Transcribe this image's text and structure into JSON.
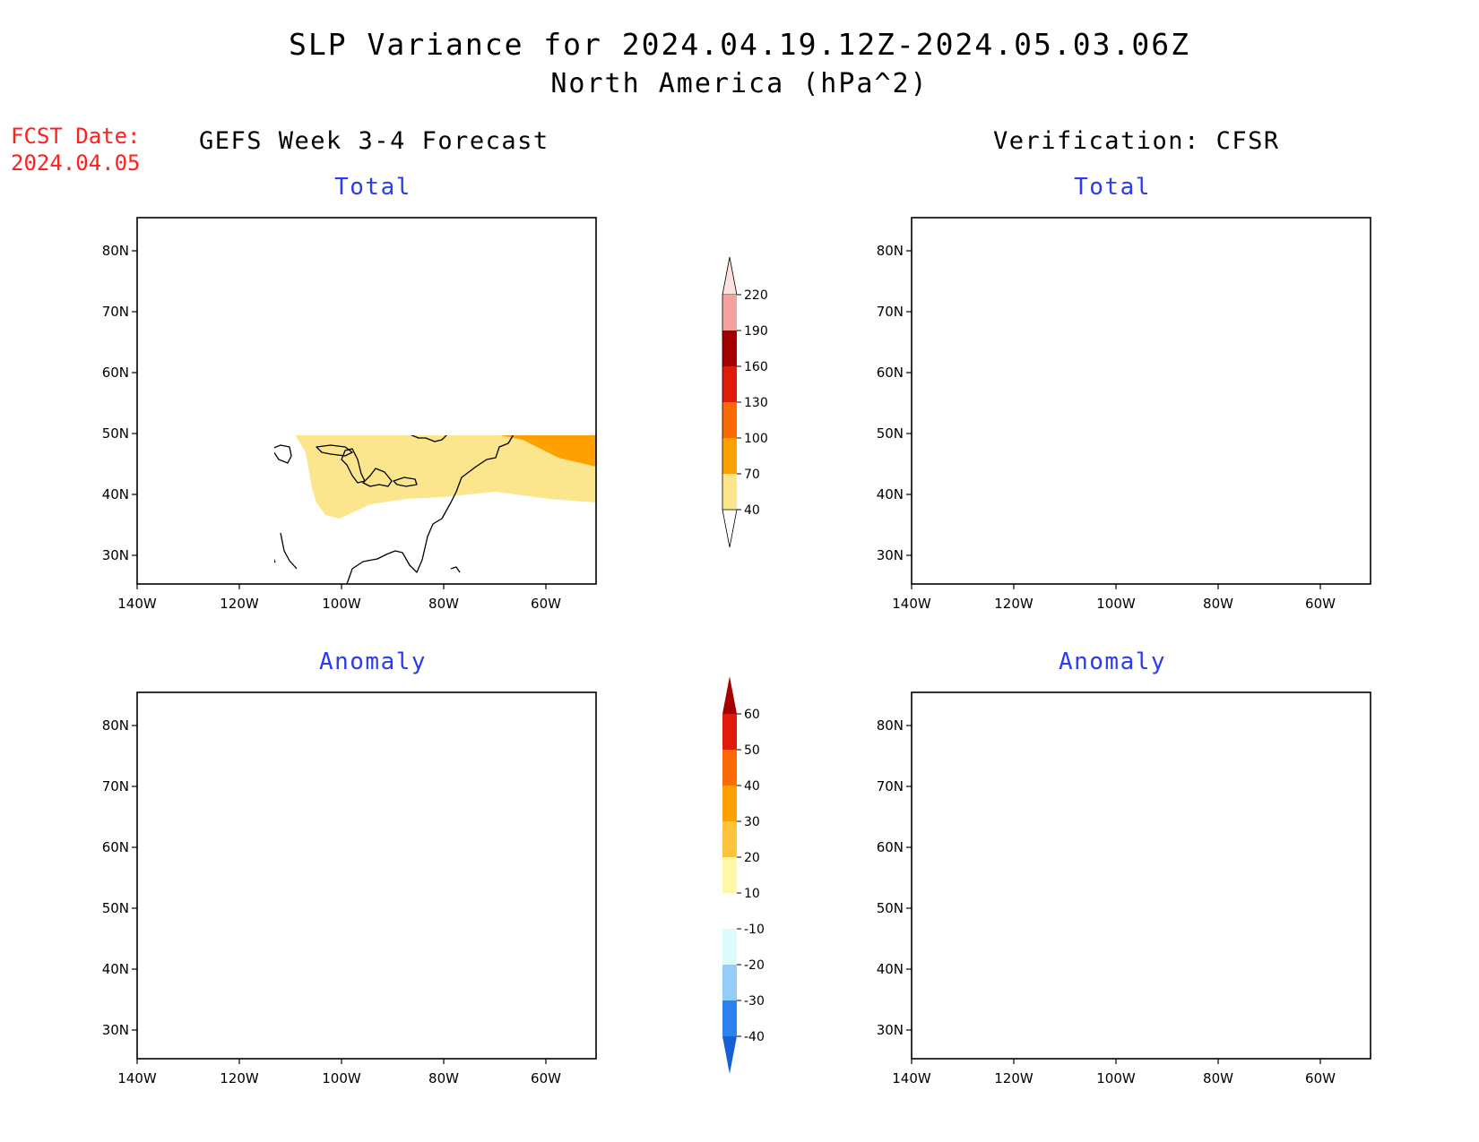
{
  "title": {
    "line1": "SLP Variance for 2024.04.19.12Z-2024.05.03.06Z",
    "line2": "North America (hPa^2)"
  },
  "forecast_date": {
    "label": "FCST Date:",
    "value": "2024.04.05"
  },
  "columns": {
    "left": "GEFS Week 3-4 Forecast",
    "right": "Verification: CFSR"
  },
  "panels": [
    {
      "id": "forecast-total",
      "title": "Total"
    },
    {
      "id": "verification-total",
      "title": "Total"
    },
    {
      "id": "forecast-anomaly",
      "title": "Anomaly"
    },
    {
      "id": "verification-anomaly",
      "title": "Anomaly"
    }
  ],
  "axes": {
    "lon_labels": [
      "140W",
      "120W",
      "100W",
      "80W",
      "60W"
    ],
    "lat_labels": [
      "80N",
      "70N",
      "60N",
      "50N",
      "40N",
      "30N"
    ]
  },
  "colorbars": {
    "total": {
      "labels": [
        "40",
        "70",
        "100",
        "130",
        "160",
        "190",
        "220"
      ],
      "colors": [
        "#ffffff",
        "#fbe58d",
        "#fda000",
        "#fb6a05",
        "#e01b0a",
        "#a50000",
        "#f6a0a0",
        "#fde1dc"
      ]
    },
    "anomaly": {
      "labels": [
        "-40",
        "-30",
        "-20",
        "-10",
        "10",
        "20",
        "30",
        "40",
        "50",
        "60"
      ],
      "colors": [
        "#1560d4",
        "#2b82ee",
        "#96ccf8",
        "#dcfbff",
        "#ffffff",
        "#fff7a6",
        "#fdc33b",
        "#fda000",
        "#fb6a05",
        "#e01b0a",
        "#a50000"
      ]
    }
  }
}
